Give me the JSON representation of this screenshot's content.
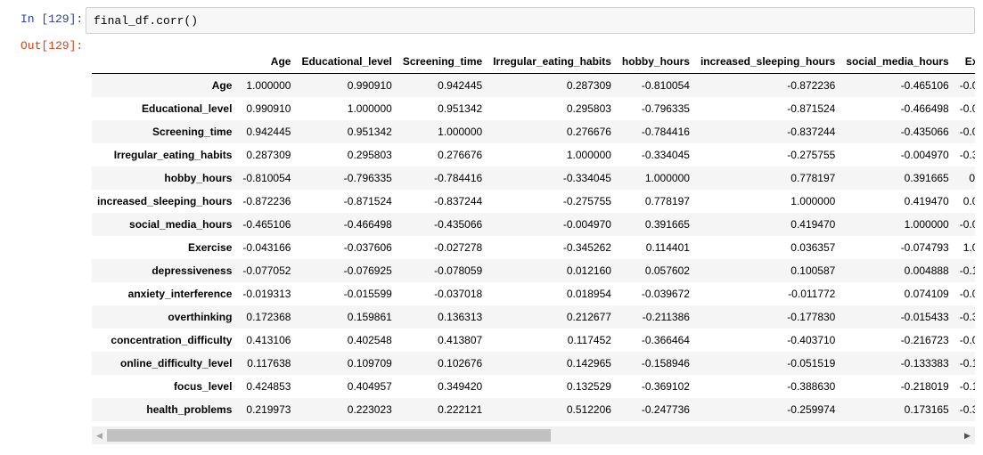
{
  "cell": {
    "in_prompt": "In [129]:",
    "out_prompt": "Out[129]:",
    "code": "final_df.corr()"
  },
  "table": {
    "columns": [
      "Age",
      "Educational_level",
      "Screening_time",
      "Irregular_eating_habits",
      "hobby_hours",
      "increased_sleeping_hours",
      "social_media_hours",
      "Ex"
    ],
    "rows": [
      {
        "label": "Age",
        "values": [
          "1.000000",
          "0.990910",
          "0.942445",
          "0.287309",
          "-0.810054",
          "-0.872236",
          "-0.465106",
          "-0.0"
        ]
      },
      {
        "label": "Educational_level",
        "values": [
          "0.990910",
          "1.000000",
          "0.951342",
          "0.295803",
          "-0.796335",
          "-0.871524",
          "-0.466498",
          "-0.0"
        ]
      },
      {
        "label": "Screening_time",
        "values": [
          "0.942445",
          "0.951342",
          "1.000000",
          "0.276676",
          "-0.784416",
          "-0.837244",
          "-0.435066",
          "-0.0"
        ]
      },
      {
        "label": "Irregular_eating_habits",
        "values": [
          "0.287309",
          "0.295803",
          "0.276676",
          "1.000000",
          "-0.334045",
          "-0.275755",
          "-0.004970",
          "-0.3"
        ]
      },
      {
        "label": "hobby_hours",
        "values": [
          "-0.810054",
          "-0.796335",
          "-0.784416",
          "-0.334045",
          "1.000000",
          "0.778197",
          "0.391665",
          "0."
        ]
      },
      {
        "label": "increased_sleeping_hours",
        "values": [
          "-0.872236",
          "-0.871524",
          "-0.837244",
          "-0.275755",
          "0.778197",
          "1.000000",
          "0.419470",
          "0.0"
        ]
      },
      {
        "label": "social_media_hours",
        "values": [
          "-0.465106",
          "-0.466498",
          "-0.435066",
          "-0.004970",
          "0.391665",
          "0.419470",
          "1.000000",
          "-0.0"
        ]
      },
      {
        "label": "Exercise",
        "values": [
          "-0.043166",
          "-0.037606",
          "-0.027278",
          "-0.345262",
          "0.114401",
          "0.036357",
          "-0.074793",
          "1.0"
        ]
      },
      {
        "label": "depressiveness",
        "values": [
          "-0.077052",
          "-0.076925",
          "-0.078059",
          "0.012160",
          "0.057602",
          "0.100587",
          "0.004888",
          "-0.1"
        ]
      },
      {
        "label": "anxiety_interference",
        "values": [
          "-0.019313",
          "-0.015599",
          "-0.037018",
          "0.018954",
          "-0.039672",
          "-0.011772",
          "0.074109",
          "-0.0"
        ]
      },
      {
        "label": "overthinking",
        "values": [
          "0.172368",
          "0.159861",
          "0.136313",
          "0.212677",
          "-0.211386",
          "-0.177830",
          "-0.015433",
          "-0.3"
        ]
      },
      {
        "label": "concentration_difficulty",
        "values": [
          "0.413106",
          "0.402548",
          "0.413807",
          "0.117452",
          "-0.366464",
          "-0.403710",
          "-0.216723",
          "-0.0"
        ]
      },
      {
        "label": "online_difficulty_level",
        "values": [
          "0.117638",
          "0.109709",
          "0.102676",
          "0.142965",
          "-0.158946",
          "-0.051519",
          "-0.133383",
          "-0.1"
        ]
      },
      {
        "label": "focus_level",
        "values": [
          "0.424853",
          "0.404957",
          "0.349420",
          "0.132529",
          "-0.369102",
          "-0.388630",
          "-0.218019",
          "-0.1"
        ]
      },
      {
        "label": "health_problems",
        "values": [
          "0.219973",
          "0.223023",
          "0.222121",
          "0.512206",
          "-0.247736",
          "-0.259974",
          "0.173165",
          "-0.3"
        ]
      }
    ]
  },
  "scrollbar": {
    "left_arrow": "◀",
    "right_arrow": "▶",
    "thumb_fraction": 0.52
  }
}
